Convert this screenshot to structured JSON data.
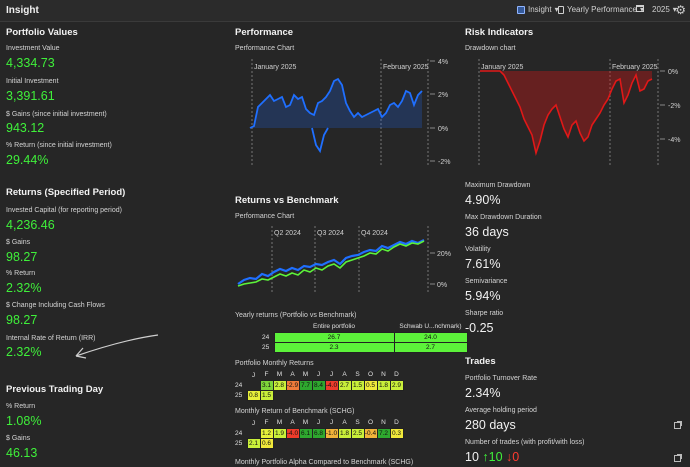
{
  "topbar": {
    "title": "Insight",
    "view_label": "Insight",
    "report_label": "Yearly Performance",
    "year_label": "2025"
  },
  "portfolio": {
    "heading": "Portfolio Values",
    "investment_value_label": "Investment Value",
    "investment_value": "4,334.73",
    "initial_investment_label": "Initial Investment",
    "initial_investment": "3,391.61",
    "gains_label": "$ Gains (since initial investment)",
    "gains": "943.12",
    "return_label": "% Return (since initial investment)",
    "return": "29.44%"
  },
  "returns_period": {
    "heading": "Returns (Specified Period)",
    "invested_label": "Invested Capital (for reporting period)",
    "invested": "4,236.46",
    "gains_label": "$ Gains",
    "gains": "98.27",
    "return_label": "% Return",
    "return": "2.32%",
    "change_label": "$ Change Including Cash Flows",
    "change": "98.27",
    "irr_label": "Internal Rate of Return (IRR)",
    "irr": "2.32%"
  },
  "previous_day": {
    "heading": "Previous Trading Day",
    "return_label": "% Return",
    "return": "1.08%",
    "gains_label": "$ Gains",
    "gains": "46.13"
  },
  "performance": {
    "heading": "Performance",
    "chart_label": "Performance Chart",
    "marker1": "January 2025",
    "marker2": "February 2025",
    "ticks": [
      "4%",
      "2%",
      "0%",
      "-2%"
    ]
  },
  "benchmark": {
    "heading": "Returns vs Benchmark",
    "chart_label": "Performance Chart",
    "markers": [
      "Q2 2024",
      "Q3 2024",
      "Q4 2024"
    ],
    "ticks": [
      "20%",
      "0%"
    ],
    "yearly_title": "Yearly returns (Portfolio vs Benchmark)",
    "yearly_headers": [
      "Entire portfolio",
      "Schwab U...nchmark)"
    ],
    "yearly_rows": [
      {
        "year": "24",
        "a": "26.7",
        "b": "24.0"
      },
      {
        "year": "25",
        "a": "2.3",
        "b": "2.7"
      }
    ],
    "monthly_title": "Portfolio Monthly Returns",
    "months": [
      "J",
      "F",
      "M",
      "A",
      "M",
      "J",
      "J",
      "A",
      "S",
      "O",
      "N",
      "D"
    ],
    "monthly_rows": [
      {
        "year": "24",
        "cells": [
          "",
          "3.1",
          "2.8",
          "-2.9",
          "7.7",
          "8.4",
          "-4.0",
          "2.7",
          "1.5",
          "0.5",
          "1.8",
          "2.9"
        ]
      },
      {
        "year": "25",
        "cells": [
          "0.8",
          "1.5",
          "",
          "",
          "",
          "",
          "",
          "",
          "",
          "",
          "",
          ""
        ]
      }
    ],
    "bench_title": "Monthly Return of Benchmark (SCHG)",
    "bench_rows": [
      {
        "year": "24",
        "cells": [
          "",
          "1.2",
          "1.9",
          "-4.0",
          "6.1",
          "6.8",
          "-1.0",
          "1.8",
          "2.5",
          "-0.4",
          "7.2",
          "0.3"
        ]
      },
      {
        "year": "25",
        "cells": [
          "2.1",
          "0.6",
          "",
          "",
          "",
          "",
          "",
          "",
          "",
          "",
          "",
          ""
        ]
      }
    ],
    "alpha_title": "Monthly Portfolio Alpha Compared to Benchmark (SCHG)"
  },
  "risk": {
    "heading": "Risk Indicators",
    "chart_label": "Drawdown chart",
    "marker1": "January 2025",
    "marker2": "February 2025",
    "ticks": [
      "0%",
      "-2%",
      "-4%"
    ],
    "max_dd_label": "Maximum Drawdown",
    "max_dd": "4.90%",
    "max_dd_dur_label": "Max Drawdown Duration",
    "max_dd_dur": "36 days",
    "volatility_label": "Volatility",
    "volatility": "7.61%",
    "semivariance_label": "Semivariance",
    "semivariance": "5.94%",
    "sharpe_label": "Sharpe ratio",
    "sharpe": "-0.25"
  },
  "trades": {
    "heading": "Trades",
    "turnover_label": "Portfolio Turnover Rate",
    "turnover": "2.34%",
    "holding_label": "Average holding period",
    "holding": "280 days",
    "count_label": "Number of trades (with profit/with loss)",
    "count_total": "10",
    "count_profit": "↑10",
    "count_loss": "↓0"
  },
  "colors": {
    "green_value": "#3ff03a",
    "blue_line": "#1f6fff",
    "red_line": "#e01818",
    "bench_green": "#5cf23a"
  }
}
